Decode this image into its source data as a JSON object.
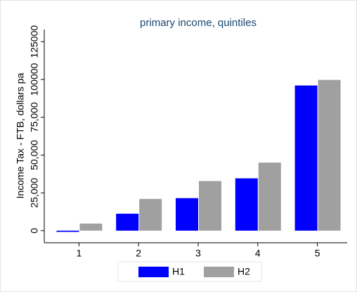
{
  "chart_data": {
    "type": "bar",
    "title": "primary income, quintiles",
    "y_label": "Income Tax - FTB, dollars pa",
    "categories": [
      "1",
      "2",
      "3",
      "4",
      "5"
    ],
    "series": [
      {
        "name": "H1",
        "color": "#0000ff",
        "values": [
          -800,
          11200,
          21500,
          34600,
          96000
        ]
      },
      {
        "name": "H2",
        "color": "#a0a0a0",
        "values": [
          4700,
          21000,
          32800,
          45000,
          99700
        ]
      }
    ],
    "ylim": [
      -8000,
      133000
    ],
    "yticks": [
      0,
      {
        "value": 25000,
        "label": "25,000"
      },
      {
        "value": 50000,
        "label": "50,000"
      },
      {
        "value": 75000,
        "label": "75,000"
      },
      100000,
      125000
    ],
    "grid": false
  }
}
